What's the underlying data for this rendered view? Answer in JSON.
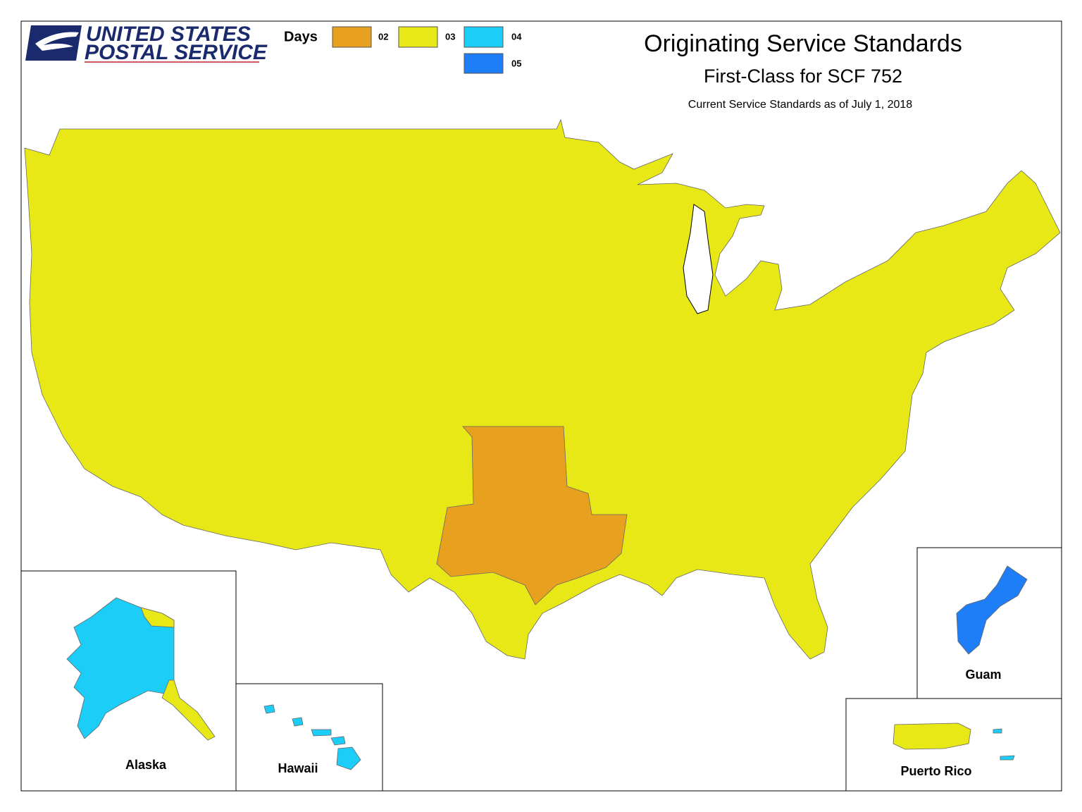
{
  "header": {
    "logo": [
      "UNITED STATES",
      "POSTAL SERVICE"
    ]
  },
  "legend": {
    "title": "Days",
    "items": [
      {
        "label": "02",
        "color": "#e8a11f"
      },
      {
        "label": "03",
        "color": "#e8e817"
      },
      {
        "label": "04",
        "color": "#1ccdf7"
      },
      {
        "label": "05",
        "color": "#1e7ef7"
      }
    ]
  },
  "title": "Originating Service Standards",
  "subtitle": "First-Class for SCF 752",
  "note": "Current Service Standards as of July 1, 2018",
  "insets": [
    "Alaska",
    "Hawaii",
    "Guam",
    "Puerto Rico"
  ]
}
